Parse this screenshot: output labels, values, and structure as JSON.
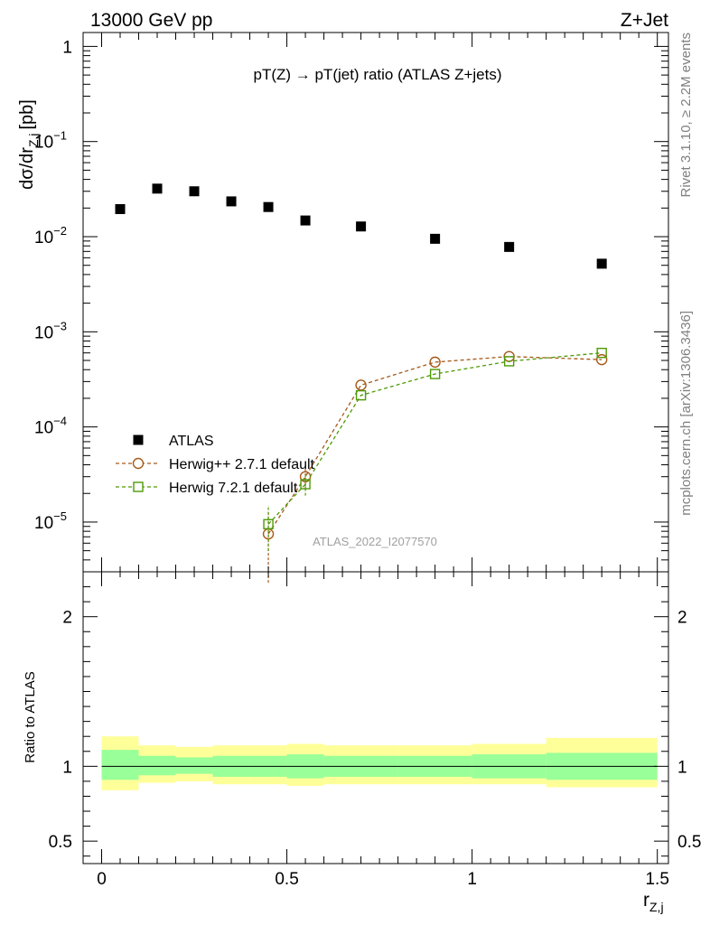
{
  "header": {
    "left": "13000 GeV pp",
    "right": "Z+Jet"
  },
  "side_labels": {
    "top": "Rivet 3.1.10, ≥ 2.2M events",
    "bottom": "mcplots.cern.ch [arXiv:1306.3436]"
  },
  "chart_data": {
    "type": "scatter",
    "title": "pT(Z) → pT(jet) ratio (ATLAS Z+jets)",
    "watermark": "ATLAS_2022_I2077570",
    "xlabel": "r",
    "xlabel_sub": "Z,j",
    "ylabel": "dσ/dr",
    "ylabel_sub": "Z,j",
    "ylabel_unit": "[pb]",
    "xlim": [
      -0.05,
      1.53
    ],
    "ylim_log": [
      3e-06,
      1.4
    ],
    "y_scale": "log",
    "x_ticks": [
      "0",
      "0.5",
      "1",
      "1.5"
    ],
    "y_ticks": [
      {
        "base": "10",
        "exp": "−5",
        "value": 1e-05
      },
      {
        "base": "10",
        "exp": "−4",
        "value": 0.0001
      },
      {
        "base": "10",
        "exp": "−3",
        "value": 0.001
      },
      {
        "base": "10",
        "exp": "−2",
        "value": 0.01
      },
      {
        "base": "10",
        "exp": "−1",
        "value": 0.1
      },
      {
        "base": "1",
        "exp": "",
        "value": 1
      }
    ],
    "legend_position": "lower-left",
    "series": [
      {
        "name": "ATLAS",
        "style": "marker",
        "color": "#000000",
        "x": [
          0.05,
          0.15,
          0.25,
          0.35,
          0.45,
          0.55,
          0.7,
          0.9,
          1.1,
          1.35
        ],
        "y": [
          0.0195,
          0.032,
          0.03,
          0.0235,
          0.0205,
          0.0148,
          0.0128,
          0.0095,
          0.0078,
          0.0052
        ]
      },
      {
        "name": "Herwig++ 2.7.1 default",
        "style": "circle-dashed",
        "color": "#a65a1a",
        "x": [
          0.45,
          0.55,
          0.7,
          0.9,
          1.1,
          1.35
        ],
        "y": [
          7.5e-06,
          3e-05,
          0.000275,
          0.00048,
          0.00055,
          0.00051
        ],
        "err_low": [
          2.3e-06,
          2.2e-05,
          null,
          null,
          null,
          null
        ],
        "err_high": [
          1.3e-05,
          4e-05,
          null,
          null,
          null,
          null
        ]
      },
      {
        "name": "Herwig 7.2.1 default",
        "style": "square-dashed",
        "color": "#4e9a06",
        "x": [
          0.45,
          0.55,
          0.7,
          0.9,
          1.1,
          1.35
        ],
        "y": [
          9.5e-06,
          2.5e-05,
          0.000215,
          0.00036,
          0.00049,
          0.0006
        ],
        "err_low": [
          5e-06,
          1.9e-05,
          null,
          null,
          null,
          null
        ],
        "err_high": [
          1.5e-05,
          3.2e-05,
          null,
          null,
          null,
          null
        ]
      }
    ],
    "ratio": {
      "ylabel": "Ratio to ATLAS",
      "ylim": [
        0.35,
        2.3
      ],
      "y_ticks": [
        "0.5",
        "1",
        "2"
      ],
      "bins": [
        0,
        0.1,
        0.2,
        0.3,
        0.4,
        0.5,
        0.6,
        0.8,
        1.0,
        1.2,
        1.5
      ],
      "inner_band": [
        [
          0.91,
          1.11
        ],
        [
          0.94,
          1.07
        ],
        [
          0.95,
          1.06
        ],
        [
          0.93,
          1.07
        ],
        [
          0.93,
          1.07
        ],
        [
          0.92,
          1.08
        ],
        [
          0.93,
          1.07
        ],
        [
          0.93,
          1.07
        ],
        [
          0.92,
          1.08
        ],
        [
          0.91,
          1.09
        ]
      ],
      "outer_band": [
        [
          0.84,
          1.2
        ],
        [
          0.89,
          1.14
        ],
        [
          0.9,
          1.13
        ],
        [
          0.88,
          1.14
        ],
        [
          0.88,
          1.14
        ],
        [
          0.87,
          1.15
        ],
        [
          0.88,
          1.14
        ],
        [
          0.88,
          1.14
        ],
        [
          0.88,
          1.15
        ],
        [
          0.86,
          1.19
        ]
      ],
      "inner_color": "#99ff99",
      "outer_color": "#ffff99"
    }
  }
}
